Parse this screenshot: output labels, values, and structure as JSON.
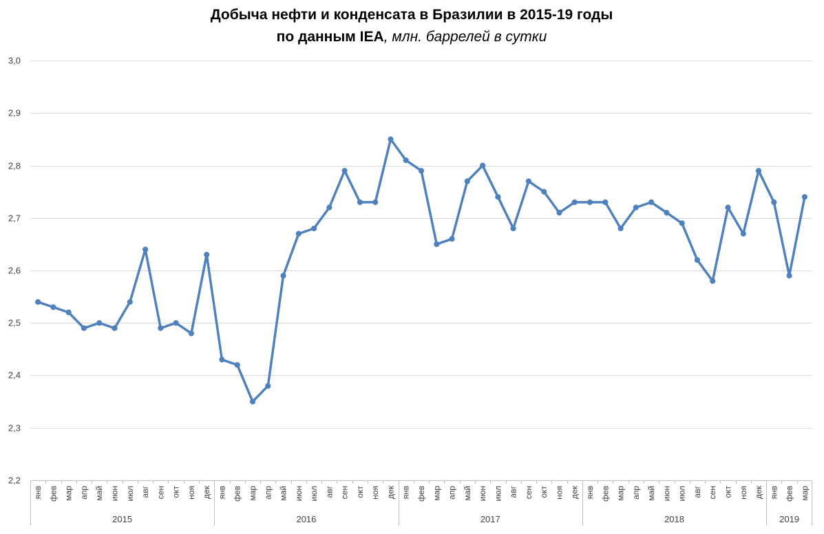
{
  "chart_data": {
    "type": "line",
    "title_line1": "Добыча нефти и конденсата в Бразилии в 2015-19 годы",
    "title_line2_bold": "по данным IEA",
    "title_line2_italic": ", млн. баррелей в сутки",
    "ylim": [
      2.2,
      3.0
    ],
    "yticks": [
      "2,2",
      "2,3",
      "2,4",
      "2,5",
      "2,6",
      "2,7",
      "2,8",
      "2,9",
      "3,0"
    ],
    "grid": true,
    "legend": "none",
    "color": "#4f81bd",
    "years": [
      {
        "label": "2015",
        "months": [
          "янв",
          "фев",
          "мар",
          "апр",
          "май",
          "июн",
          "июл",
          "авг",
          "сен",
          "окт",
          "ноя",
          "дек"
        ]
      },
      {
        "label": "2016",
        "months": [
          "янв",
          "фев",
          "мар",
          "апр",
          "май",
          "июн",
          "июл",
          "авг",
          "сен",
          "окт",
          "ноя",
          "дек"
        ]
      },
      {
        "label": "2017",
        "months": [
          "янв",
          "фев",
          "мар",
          "апр",
          "май",
          "июн",
          "июл",
          "авг",
          "сен",
          "окт",
          "ноя",
          "дек"
        ]
      },
      {
        "label": "2018",
        "months": [
          "янв",
          "фев",
          "мар",
          "апр",
          "май",
          "июн",
          "июл",
          "авг",
          "сен",
          "окт",
          "ноя",
          "дек"
        ]
      },
      {
        "label": "2019",
        "months": [
          "янв",
          "фев",
          "мар"
        ]
      }
    ],
    "values": [
      2.54,
      2.53,
      2.52,
      2.49,
      2.5,
      2.49,
      2.54,
      2.64,
      2.49,
      2.5,
      2.48,
      2.63,
      2.43,
      2.42,
      2.35,
      2.38,
      2.59,
      2.67,
      2.68,
      2.72,
      2.79,
      2.73,
      2.73,
      2.85,
      2.81,
      2.79,
      2.65,
      2.66,
      2.77,
      2.8,
      2.74,
      2.68,
      2.77,
      2.75,
      2.71,
      2.73,
      2.73,
      2.73,
      2.68,
      2.72,
      2.73,
      2.71,
      2.69,
      2.62,
      2.58,
      2.72,
      2.67,
      2.79,
      2.73,
      2.59,
      2.74
    ]
  }
}
